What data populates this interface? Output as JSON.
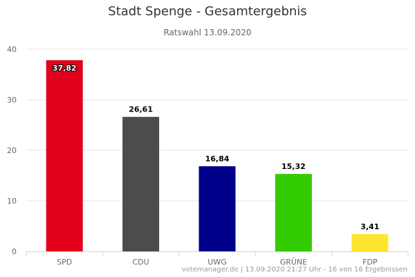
{
  "title": "Stadt Spenge - Gesamtergebnis",
  "subtitle": "Ratswahl 13.09.2020",
  "credits": "votemanager.de | 13.09.2020 21:27 Uhr - 16 von 16 Ergebnissen",
  "chart_data": {
    "type": "bar",
    "categories": [
      "SPD",
      "CDU",
      "UWG",
      "GRÜNE",
      "FDP"
    ],
    "values": [
      37.82,
      26.61,
      16.84,
      15.32,
      3.41
    ],
    "data_labels": [
      "37,82",
      "26,61",
      "16,84",
      "15,32",
      "3,41"
    ],
    "colors": [
      "#e2001a",
      "#4c4c4c",
      "#00008b",
      "#33cc00",
      "#ffe62e"
    ],
    "ylim": [
      0,
      40
    ],
    "yticks": [
      0,
      10,
      20,
      30,
      40
    ],
    "ytick_labels": [
      "0",
      "10",
      "20",
      "30",
      "40"
    ],
    "grid": true,
    "legend": "none",
    "title": "Stadt Spenge - Gesamtergebnis",
    "subtitle": "Ratswahl 13.09.2020",
    "xlabel": "",
    "ylabel": ""
  }
}
